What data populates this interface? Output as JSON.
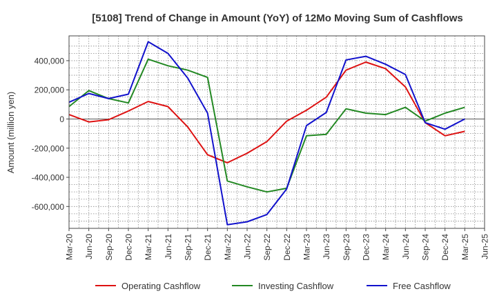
{
  "chart_data": {
    "type": "line",
    "title": "[5108]  Trend of Change in Amount (YoY) of 12Mo Moving Sum of Cashflows",
    "xlabel": "",
    "ylabel": "Amount (million yen)",
    "ylim": [
      -750000,
      570000
    ],
    "yticks": [
      -600000,
      -400000,
      -200000,
      0,
      200000,
      400000
    ],
    "ytick_labels": [
      "-600,000",
      "-400,000",
      "-200,000",
      "0",
      "200,000",
      "400,000"
    ],
    "categories": [
      "Mar-20",
      "Jun-20",
      "Sep-20",
      "Dec-20",
      "Mar-21",
      "Jun-21",
      "Sep-21",
      "Dec-21",
      "Mar-22",
      "Jun-22",
      "Sep-22",
      "Dec-22",
      "Mar-23",
      "Jun-23",
      "Sep-23",
      "Dec-23",
      "Mar-24",
      "Jun-24",
      "Sep-24",
      "Dec-24",
      "Mar-25",
      "Jun-25"
    ],
    "grid": true,
    "legend_position": "bottom",
    "series": [
      {
        "name": "Operating Cashflow",
        "color": "#dd1111",
        "values": [
          30000,
          -20000,
          -5000,
          55000,
          120000,
          85000,
          -55000,
          -245000,
          -300000,
          -235000,
          -155000,
          -15000,
          60000,
          150000,
          335000,
          390000,
          345000,
          220000,
          -25000,
          -115000,
          -85000,
          null
        ]
      },
      {
        "name": "Investing Cashflow",
        "color": "#228822",
        "values": [
          85000,
          195000,
          140000,
          110000,
          410000,
          365000,
          335000,
          285000,
          -425000,
          -465000,
          -500000,
          -475000,
          -115000,
          -105000,
          70000,
          40000,
          30000,
          80000,
          -15000,
          40000,
          80000,
          null
        ]
      },
      {
        "name": "Free Cashflow",
        "color": "#1111cc",
        "values": [
          115000,
          175000,
          140000,
          170000,
          530000,
          450000,
          280000,
          40000,
          -725000,
          -705000,
          -655000,
          -480000,
          -45000,
          45000,
          405000,
          430000,
          375000,
          305000,
          -25000,
          -70000,
          0,
          null
        ]
      }
    ]
  }
}
